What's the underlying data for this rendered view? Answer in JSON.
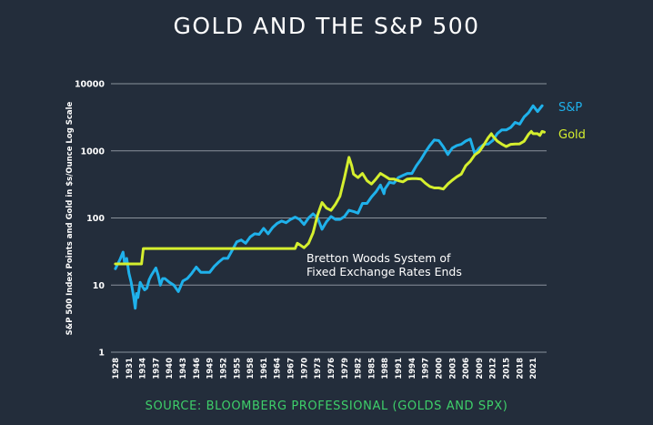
{
  "chart_data": {
    "type": "line",
    "title": "GOLD AND THE S&P 500",
    "source": "SOURCE: BLOOMBERG PROFESSIONAL (GOLDS AND SPX)",
    "ylabel": "S&P 500 Index Points and Gold in $s/Ounce Log Scale",
    "xlabel": "",
    "y_scale": "log",
    "ylim": [
      1,
      10000
    ],
    "xlim": [
      1928,
      2024
    ],
    "y_ticks": [
      "1",
      "10",
      "100",
      "1000",
      "10000"
    ],
    "x_ticks": [
      "1928",
      "1931",
      "1934",
      "1937",
      "1940",
      "1943",
      "1946",
      "1949",
      "1952",
      "1955",
      "1958",
      "1961",
      "1964",
      "1967",
      "1970",
      "1973",
      "1976",
      "1979",
      "1982",
      "1985",
      "1988",
      "1991",
      "1994",
      "1997",
      "2000",
      "2003",
      "2006",
      "2009",
      "2012",
      "2015",
      "2018",
      "2021"
    ],
    "grid": "horizontal",
    "legend_placement": "right",
    "annotation": [
      "Bretton Woods System of",
      "Fixed Exchange Rates Ends"
    ],
    "series": [
      {
        "name": "S&P",
        "color": "#1fb1eb",
        "points": [
          [
            1928,
            17.5
          ],
          [
            1929,
            24
          ],
          [
            1929.7,
            31
          ],
          [
            1930,
            22
          ],
          [
            1930.5,
            25
          ],
          [
            1931,
            15
          ],
          [
            1931.5,
            11
          ],
          [
            1932,
            7
          ],
          [
            1932.4,
            4.5
          ],
          [
            1932.7,
            7.5
          ],
          [
            1933,
            6.5
          ],
          [
            1933.5,
            11
          ],
          [
            1934,
            9.5
          ],
          [
            1934.5,
            8.5
          ],
          [
            1935,
            9
          ],
          [
            1935.5,
            12
          ],
          [
            1936,
            14
          ],
          [
            1937,
            18
          ],
          [
            1937.5,
            14
          ],
          [
            1938,
            10
          ],
          [
            1938.5,
            12.5
          ],
          [
            1939,
            12.5
          ],
          [
            1940,
            11
          ],
          [
            1941,
            10
          ],
          [
            1942,
            8
          ],
          [
            1942.5,
            9.5
          ],
          [
            1943,
            11.5
          ],
          [
            1944,
            12.5
          ],
          [
            1945,
            15
          ],
          [
            1946,
            18.5
          ],
          [
            1947,
            15.5
          ],
          [
            1948,
            15.5
          ],
          [
            1949,
            15.5
          ],
          [
            1950,
            19
          ],
          [
            1951,
            22
          ],
          [
            1952,
            25
          ],
          [
            1953,
            25
          ],
          [
            1954,
            33
          ],
          [
            1955,
            44
          ],
          [
            1956,
            47
          ],
          [
            1957,
            42
          ],
          [
            1958,
            52
          ],
          [
            1959,
            58
          ],
          [
            1960,
            57
          ],
          [
            1961,
            70
          ],
          [
            1962,
            58
          ],
          [
            1963,
            72
          ],
          [
            1964,
            83
          ],
          [
            1965,
            90
          ],
          [
            1966,
            85
          ],
          [
            1967,
            95
          ],
          [
            1968,
            103
          ],
          [
            1969,
            95
          ],
          [
            1970,
            80
          ],
          [
            1971,
            100
          ],
          [
            1972,
            115
          ],
          [
            1973,
            100
          ],
          [
            1974,
            68
          ],
          [
            1975,
            88
          ],
          [
            1976,
            105
          ],
          [
            1977,
            95
          ],
          [
            1978,
            95
          ],
          [
            1979,
            105
          ],
          [
            1980,
            130
          ],
          [
            1981,
            125
          ],
          [
            1982,
            118
          ],
          [
            1983,
            165
          ],
          [
            1984,
            165
          ],
          [
            1985,
            205
          ],
          [
            1986,
            245
          ],
          [
            1987,
            310
          ],
          [
            1987.8,
            230
          ],
          [
            1988,
            270
          ],
          [
            1989,
            340
          ],
          [
            1990,
            330
          ],
          [
            1991,
            400
          ],
          [
            1992,
            430
          ],
          [
            1993,
            460
          ],
          [
            1994,
            460
          ],
          [
            1995,
            600
          ],
          [
            1996,
            740
          ],
          [
            1997,
            960
          ],
          [
            1998,
            1200
          ],
          [
            1999,
            1450
          ],
          [
            2000,
            1420
          ],
          [
            2001,
            1150
          ],
          [
            2002,
            880
          ],
          [
            2003,
            1100
          ],
          [
            2004,
            1200
          ],
          [
            2005,
            1250
          ],
          [
            2006,
            1400
          ],
          [
            2007,
            1500
          ],
          [
            2008,
            900
          ],
          [
            2009,
            1100
          ],
          [
            2010,
            1250
          ],
          [
            2011,
            1260
          ],
          [
            2012,
            1420
          ],
          [
            2013,
            1800
          ],
          [
            2014,
            2050
          ],
          [
            2015,
            2050
          ],
          [
            2016,
            2230
          ],
          [
            2017,
            2650
          ],
          [
            2018,
            2500
          ],
          [
            2019,
            3200
          ],
          [
            2020,
            3700
          ],
          [
            2021,
            4700
          ],
          [
            2022,
            3850
          ],
          [
            2023,
            4700
          ]
        ]
      },
      {
        "name": "Gold",
        "color": "#d5ef2e",
        "points": [
          [
            1928,
            20.67
          ],
          [
            1933.8,
            20.67
          ],
          [
            1934.2,
            35
          ],
          [
            1968,
            35
          ],
          [
            1968.5,
            42
          ],
          [
            1969,
            40
          ],
          [
            1970,
            36
          ],
          [
            1971,
            42
          ],
          [
            1972,
            60
          ],
          [
            1973,
            110
          ],
          [
            1974,
            170
          ],
          [
            1975,
            140
          ],
          [
            1976,
            130
          ],
          [
            1977,
            160
          ],
          [
            1978,
            210
          ],
          [
            1979,
            400
          ],
          [
            1980,
            800
          ],
          [
            1980.6,
            600
          ],
          [
            1981,
            450
          ],
          [
            1982,
            400
          ],
          [
            1983,
            460
          ],
          [
            1984,
            360
          ],
          [
            1985,
            320
          ],
          [
            1986,
            380
          ],
          [
            1987,
            460
          ],
          [
            1988,
            420
          ],
          [
            1989,
            380
          ],
          [
            1990,
            380
          ],
          [
            1991,
            360
          ],
          [
            1992,
            345
          ],
          [
            1993,
            380
          ],
          [
            1994,
            385
          ],
          [
            1995,
            385
          ],
          [
            1996,
            380
          ],
          [
            1997,
            330
          ],
          [
            1998,
            295
          ],
          [
            1999,
            280
          ],
          [
            2000,
            280
          ],
          [
            2001,
            270
          ],
          [
            2002,
            320
          ],
          [
            2003,
            365
          ],
          [
            2004,
            410
          ],
          [
            2005,
            450
          ],
          [
            2006,
            600
          ],
          [
            2007,
            700
          ],
          [
            2008,
            870
          ],
          [
            2009,
            970
          ],
          [
            2010,
            1220
          ],
          [
            2011,
            1570
          ],
          [
            2011.7,
            1800
          ],
          [
            2012,
            1670
          ],
          [
            2013,
            1400
          ],
          [
            2014,
            1260
          ],
          [
            2015,
            1160
          ],
          [
            2016,
            1250
          ],
          [
            2017,
            1260
          ],
          [
            2018,
            1270
          ],
          [
            2019,
            1390
          ],
          [
            2020,
            1770
          ],
          [
            2020.6,
            1950
          ],
          [
            2021,
            1800
          ],
          [
            2022,
            1800
          ],
          [
            2022.5,
            1700
          ],
          [
            2023,
            1950
          ],
          [
            2023.5,
            1900
          ]
        ]
      }
    ]
  }
}
